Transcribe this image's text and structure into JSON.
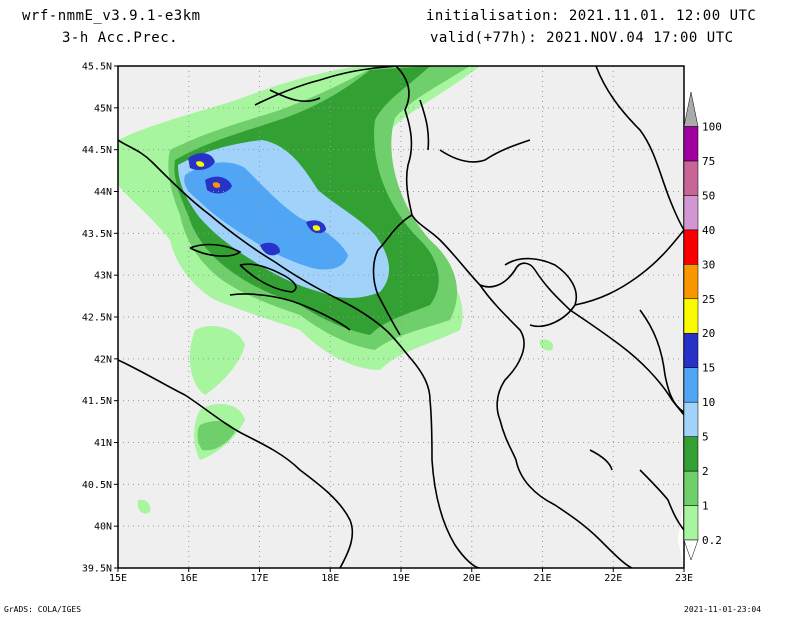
{
  "header": {
    "model": "wrf-nmmE_v3.9.1-e3km",
    "field": "3-h Acc.Prec.",
    "init": "initialisation: 2021.11.01.  12:00 UTC",
    "valid": "valid(+77h): 2021.NOV.04 17:00 UTC"
  },
  "map": {
    "lat_ticks": [
      "45.5N",
      "45N",
      "44.5N",
      "44N",
      "43.5N",
      "43N",
      "42.5N",
      "42N",
      "41.5N",
      "41N",
      "40.5N",
      "40N",
      "39.5N"
    ],
    "lon_ticks": [
      "15E",
      "16E",
      "17E",
      "18E",
      "19E",
      "20E",
      "21E",
      "22E",
      "23E"
    ],
    "lon_range": [
      15,
      23
    ],
    "lat_range": [
      39.5,
      45.5
    ],
    "colors": {
      "background": "#efefef",
      "gridlines": "#9a9a9a",
      "borders": "#000000"
    }
  },
  "legend": {
    "levels": [
      "0.2",
      "1",
      "2",
      "5",
      "10",
      "15",
      "20",
      "25",
      "30",
      "40",
      "50",
      "75",
      "100"
    ],
    "colors": [
      "#a8f5a0",
      "#6fcf6a",
      "#32a032",
      "#a0d2fa",
      "#50a5f5",
      "#2832c8",
      "#fafa00",
      "#fa9600",
      "#fa0000",
      "#d296d2",
      "#c86496",
      "#a000a0",
      "#aaaaaa"
    ]
  },
  "footer": {
    "credit": "GrADS: COLA/IGES",
    "timestamp": "2021-11-01-23:04"
  }
}
